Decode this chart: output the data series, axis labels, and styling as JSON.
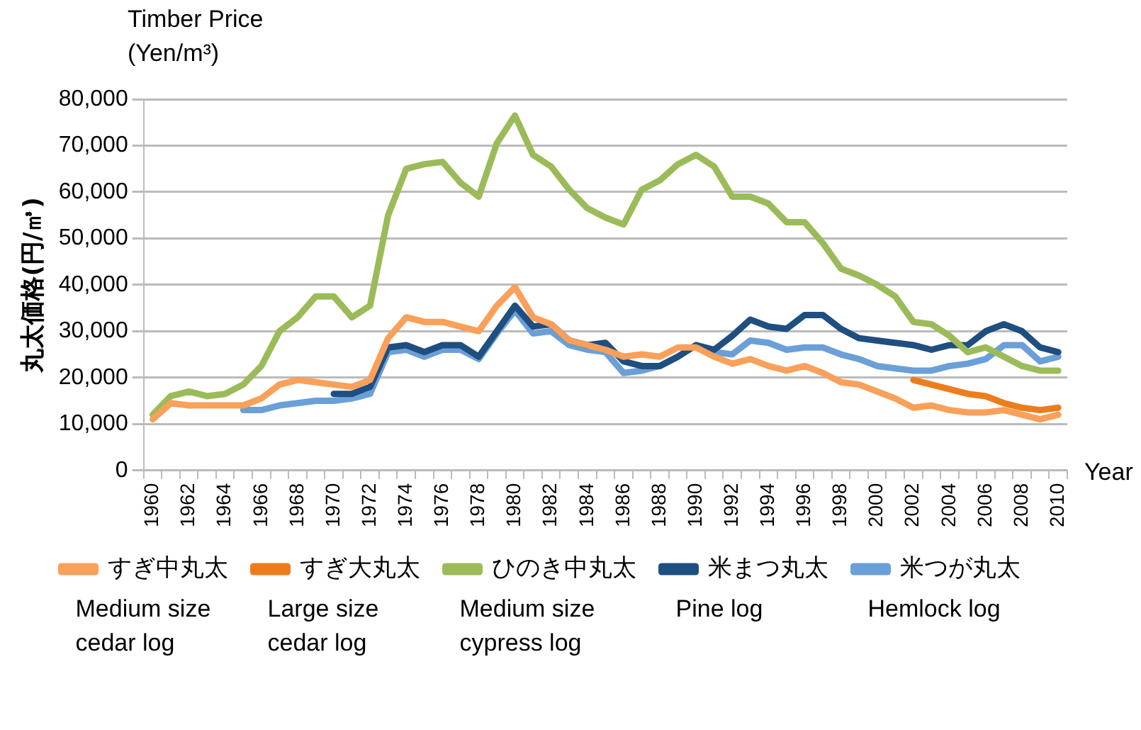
{
  "chart_data": {
    "type": "line",
    "title": "Timber Price (Yen/m³)",
    "ylabel": "丸太価格(円/㎥)",
    "xlabel": "Year",
    "categories": [
      "1960",
      null,
      "1962",
      null,
      "1964",
      null,
      "1966",
      null,
      "1968",
      null,
      "1970",
      null,
      "1972",
      null,
      "1974",
      null,
      "1976",
      null,
      "1978",
      null,
      "1980",
      null,
      "1982",
      null,
      "1984",
      null,
      "1986",
      null,
      "1988",
      null,
      "1990",
      null,
      "1992",
      null,
      "1994",
      null,
      "1996",
      null,
      "1998",
      null,
      "2000",
      null,
      "2002",
      null,
      "2004",
      null,
      "2006",
      null,
      "2008",
      null,
      "2010"
    ],
    "series": [
      {
        "name": "すぎ中丸太",
        "color": "#f9a05a",
        "values": [
          11000,
          14500,
          14000,
          14000,
          14000,
          14000,
          15500,
          18500,
          19500,
          19000,
          18500,
          18000,
          19500,
          28500,
          33000,
          32000,
          32000,
          31000,
          30000,
          35500,
          39500,
          33000,
          31500,
          28000,
          27000,
          26000,
          24500,
          25000,
          24500,
          26500,
          26500,
          24500,
          23000,
          24000,
          22500,
          21500,
          22500,
          21000,
          19000,
          18500,
          17000,
          15500,
          13500,
          14000,
          13000,
          12500,
          12500,
          13000,
          12000,
          11000,
          12000
        ]
      },
      {
        "name": "すぎ大丸太",
        "color": "#ed7d1c",
        "values": [
          null,
          null,
          null,
          null,
          null,
          null,
          null,
          null,
          null,
          null,
          null,
          null,
          null,
          null,
          null,
          null,
          null,
          null,
          null,
          null,
          null,
          null,
          null,
          null,
          null,
          null,
          null,
          null,
          null,
          null,
          null,
          null,
          null,
          null,
          null,
          null,
          null,
          null,
          null,
          null,
          null,
          null,
          19500,
          18500,
          17500,
          16500,
          16000,
          14500,
          13500,
          13000,
          13500
        ]
      },
      {
        "name": "ひのき中丸太",
        "color": "#9bbb59",
        "values": [
          12000,
          16000,
          17000,
          16000,
          16500,
          18500,
          22500,
          30000,
          33000,
          37500,
          37500,
          33000,
          35500,
          55000,
          65000,
          66000,
          66500,
          62000,
          59000,
          70500,
          76500,
          68000,
          65500,
          60500,
          56500,
          54500,
          53000,
          60500,
          62500,
          66000,
          68000,
          65500,
          59000,
          59000,
          57500,
          53500,
          53500,
          49000,
          43500,
          42000,
          40000,
          37500,
          32000,
          31500,
          29000,
          25500,
          26500,
          24500,
          22500,
          21500,
          21500
        ]
      },
      {
        "name": "米まつ丸太",
        "color": "#1f4e80",
        "values": [
          null,
          null,
          null,
          null,
          null,
          null,
          null,
          null,
          null,
          null,
          16500,
          16500,
          18000,
          26500,
          27000,
          25500,
          27000,
          27000,
          24500,
          30000,
          35500,
          31000,
          31500,
          28000,
          27000,
          27500,
          23500,
          22500,
          22500,
          24500,
          27000,
          26000,
          29000,
          32500,
          31000,
          30500,
          33500,
          33500,
          30500,
          28500,
          28000,
          27500,
          27000,
          26000,
          27000,
          27000,
          30000,
          31500,
          30000,
          26500,
          25500
        ]
      },
      {
        "name": "米つが丸太",
        "color": "#6a9fd8",
        "values": [
          null,
          null,
          null,
          null,
          null,
          13000,
          13000,
          14000,
          14500,
          15000,
          15000,
          15500,
          16500,
          25500,
          26000,
          24500,
          26000,
          26000,
          24000,
          29500,
          34500,
          29500,
          30000,
          27000,
          26000,
          25500,
          21000,
          21500,
          22500,
          24500,
          27000,
          25500,
          25000,
          28000,
          27500,
          26000,
          26500,
          26500,
          25000,
          24000,
          22500,
          22000,
          21500,
          21500,
          22500,
          23000,
          24000,
          27000,
          27000,
          23500,
          24500
        ]
      }
    ],
    "ylim": [
      0,
      80000
    ],
    "yticks": [
      {
        "value": 0,
        "label": "0"
      },
      {
        "value": 10000,
        "label": "10,000"
      },
      {
        "value": 20000,
        "label": "20,000"
      },
      {
        "value": 30000,
        "label": "30,000"
      },
      {
        "value": 40000,
        "label": "40,000"
      },
      {
        "value": 50000,
        "label": "50,000"
      },
      {
        "value": 60000,
        "label": "60,000"
      },
      {
        "value": 70000,
        "label": "70,000"
      },
      {
        "value": 80000,
        "label": "80,000"
      }
    ],
    "grid": "y",
    "legend": "bottom",
    "marker": "none",
    "line_style": "solid",
    "annotations": [
      "Medium size cedar log",
      "Large size cedar log",
      "Medium size cypress log",
      "Pine log",
      "Hemlock log"
    ]
  }
}
